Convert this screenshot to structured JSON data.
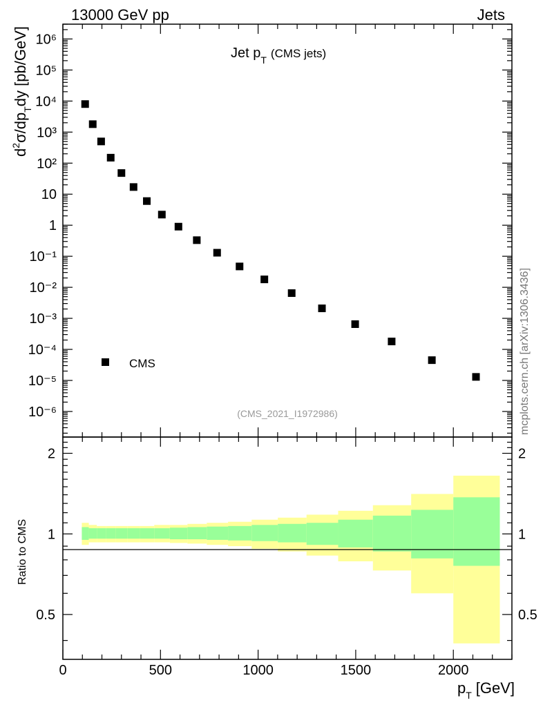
{
  "header": {
    "left": "13000 GeV pp",
    "right": "Jets"
  },
  "side_label": "mcplots.cern.ch [arXiv:1306.3436]",
  "colors": {
    "green_band": "#99ff99",
    "yellow_band": "#ffff99",
    "marker": "#000000",
    "source_text": "#999999",
    "side_text": "#777777"
  },
  "chart_data": [
    {
      "type": "scatter",
      "title": {
        "main": "Jet p",
        "sub": "T",
        "extra": "(CMS jets)"
      },
      "ylabel": "d²σ/dp_T dy [pb/GeV]",
      "source_label": "(CMS_2021_I1972986)",
      "legend": {
        "label": "CMS",
        "placement": "lower-left"
      },
      "yscale": "log",
      "xlim": [
        0,
        2300
      ],
      "ylim": [
        1.5e-07,
        3000000.0
      ],
      "ytick_labels": [
        "10⁶",
        "10⁵",
        "10⁴",
        "10³",
        "10²",
        "10",
        "1",
        "10⁻¹",
        "10⁻²",
        "10⁻³",
        "10⁻⁴",
        "10⁻⁵",
        "10⁻⁶"
      ],
      "series": [
        {
          "name": "CMS",
          "x": [
            114,
            153,
            196,
            245,
            300,
            362,
            430,
            507,
            592,
            686,
            790,
            905,
            1032,
            1172,
            1327,
            1497,
            1684,
            1890,
            2116
          ],
          "y": [
            8000,
            1800,
            500,
            150,
            48,
            17,
            6,
            2.2,
            0.9,
            0.33,
            0.13,
            0.047,
            0.018,
            0.0065,
            0.0021,
            0.00065,
            0.00018,
            4.5e-05,
            1.3e-05
          ]
        }
      ]
    },
    {
      "type": "area",
      "ylabel": "Ratio to CMS",
      "xlabel": "p_T [GeV]",
      "xlim": [
        0,
        2300
      ],
      "ylim": [
        0.34,
        2.3
      ],
      "xtick_labels": [
        "0",
        "500",
        "1000",
        "1500",
        "2000"
      ],
      "ytick_labels": [
        "2",
        "1",
        "0.5"
      ],
      "reference_line": 1,
      "bins": [
        {
          "lo": 97,
          "hi": 133,
          "green": [
            0.95,
            1.06
          ],
          "yellow": [
            0.91,
            1.1
          ]
        },
        {
          "lo": 133,
          "hi": 174,
          "green": [
            0.96,
            1.05
          ],
          "yellow": [
            0.93,
            1.08
          ]
        },
        {
          "lo": 174,
          "hi": 220,
          "green": [
            0.96,
            1.05
          ],
          "yellow": [
            0.93,
            1.07
          ]
        },
        {
          "lo": 220,
          "hi": 272,
          "green": [
            0.96,
            1.05
          ],
          "yellow": [
            0.93,
            1.07
          ]
        },
        {
          "lo": 272,
          "hi": 330,
          "green": [
            0.96,
            1.05
          ],
          "yellow": [
            0.93,
            1.07
          ]
        },
        {
          "lo": 330,
          "hi": 395,
          "green": [
            0.96,
            1.05
          ],
          "yellow": [
            0.93,
            1.07
          ]
        },
        {
          "lo": 395,
          "hi": 468,
          "green": [
            0.96,
            1.05
          ],
          "yellow": [
            0.93,
            1.07
          ]
        },
        {
          "lo": 468,
          "hi": 548,
          "green": [
            0.96,
            1.05
          ],
          "yellow": [
            0.93,
            1.08
          ]
        },
        {
          "lo": 548,
          "hi": 638,
          "green": [
            0.955,
            1.055
          ],
          "yellow": [
            0.925,
            1.08
          ]
        },
        {
          "lo": 638,
          "hi": 737,
          "green": [
            0.955,
            1.06
          ],
          "yellow": [
            0.92,
            1.09
          ]
        },
        {
          "lo": 737,
          "hi": 846,
          "green": [
            0.95,
            1.065
          ],
          "yellow": [
            0.91,
            1.1
          ]
        },
        {
          "lo": 846,
          "hi": 967,
          "green": [
            0.945,
            1.07
          ],
          "yellow": [
            0.9,
            1.11
          ]
        },
        {
          "lo": 967,
          "hi": 1101,
          "green": [
            0.94,
            1.08
          ],
          "yellow": [
            0.88,
            1.13
          ]
        },
        {
          "lo": 1101,
          "hi": 1248,
          "green": [
            0.93,
            1.09
          ],
          "yellow": [
            0.86,
            1.15
          ]
        },
        {
          "lo": 1248,
          "hi": 1410,
          "green": [
            0.91,
            1.1
          ],
          "yellow": [
            0.83,
            1.18
          ]
        },
        {
          "lo": 1410,
          "hi": 1588,
          "green": [
            0.89,
            1.13
          ],
          "yellow": [
            0.79,
            1.22
          ]
        },
        {
          "lo": 1588,
          "hi": 1784,
          "green": [
            0.86,
            1.17
          ],
          "yellow": [
            0.73,
            1.28
          ]
        },
        {
          "lo": 1784,
          "hi": 2000,
          "green": [
            0.81,
            1.23
          ],
          "yellow": [
            0.6,
            1.41
          ]
        },
        {
          "lo": 2000,
          "hi": 2238,
          "green": [
            0.76,
            1.37
          ],
          "yellow": [
            0.39,
            1.65
          ]
        }
      ]
    }
  ]
}
